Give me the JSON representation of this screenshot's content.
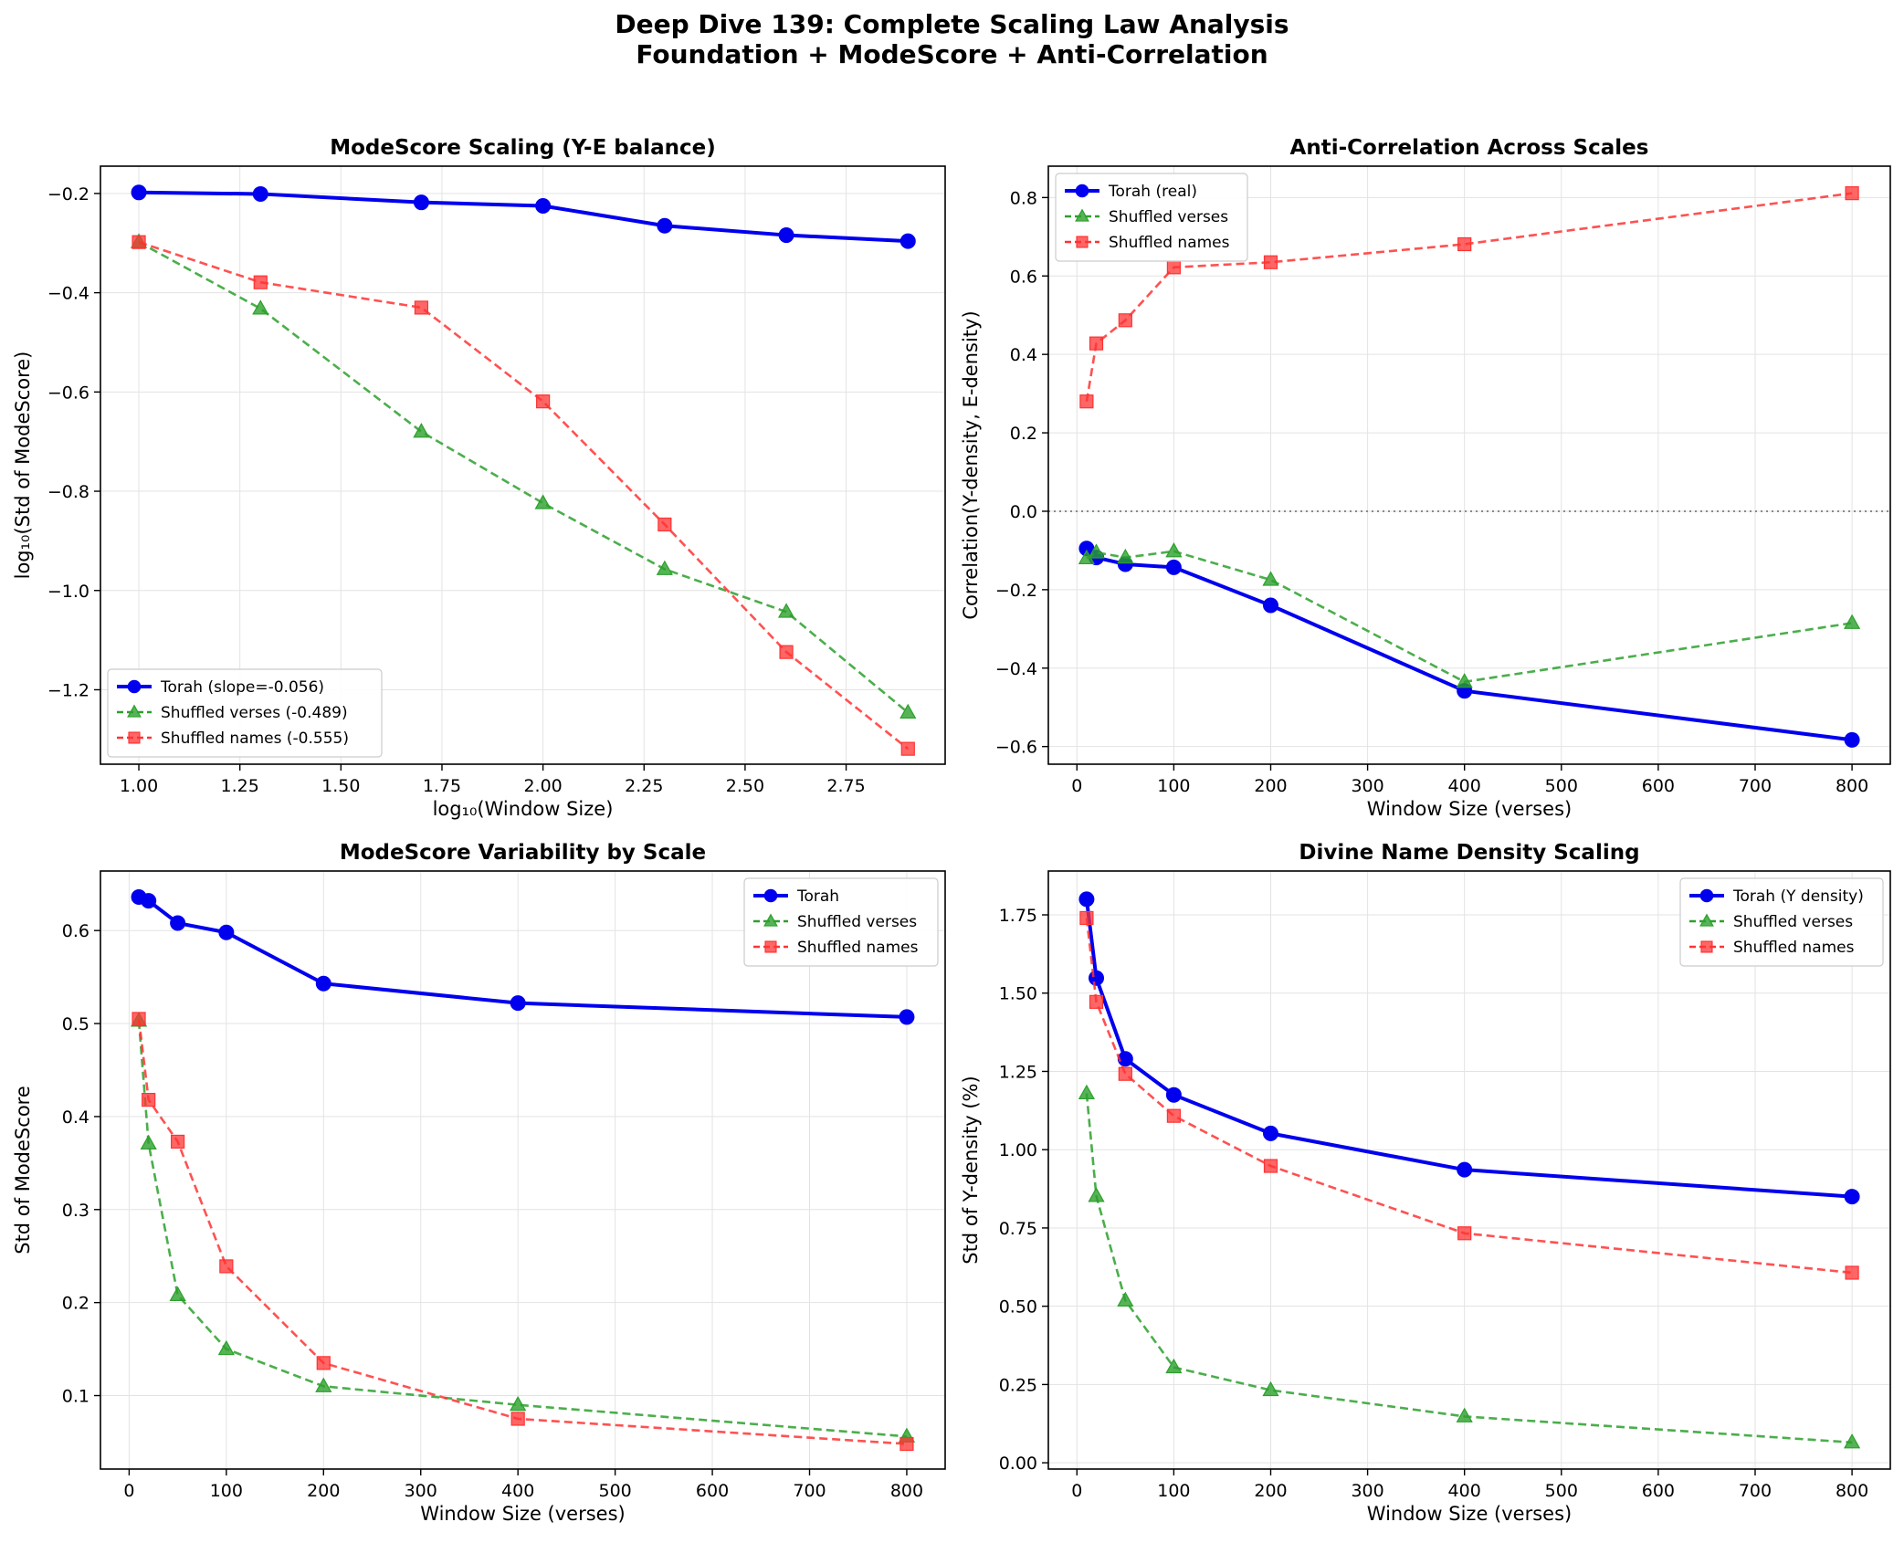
{
  "figure": {
    "title_lines": [
      "Deep Dive 139: Complete Scaling Law Analysis",
      "Foundation + ModeScore + Anti-Correlation"
    ]
  },
  "styles": {
    "Torah": {
      "color": "#0000ee",
      "marker": "circle",
      "dash": "solid"
    },
    "Shuffled verses": {
      "color": "#2ca02c",
      "marker": "triangle",
      "dash": "dashed"
    },
    "Shuffled names": {
      "color": "#ff3333",
      "marker": "square",
      "dash": "dashed"
    }
  },
  "chart_data": [
    {
      "type": "line",
      "title": "ModeScore Scaling (Y-E balance)",
      "xlabel": "log₁₀(Window Size)",
      "ylabel": "log₁₀(Std of ModeScore)",
      "xlim": [
        0.905,
        2.995
      ],
      "ylim": [
        -1.35,
        -0.145
      ],
      "xticks": [
        1.0,
        1.25,
        1.5,
        1.75,
        2.0,
        2.25,
        2.5,
        2.75
      ],
      "xtick_labels": [
        "1.00",
        "1.25",
        "1.50",
        "1.75",
        "2.00",
        "2.25",
        "2.50",
        "2.75"
      ],
      "yticks": [
        -1.2,
        -1.0,
        -0.8,
        -0.6,
        -0.4,
        -0.2
      ],
      "ytick_labels": [
        "−1.2",
        "−1.0",
        "−0.8",
        "−0.6",
        "−0.4",
        "−0.2"
      ],
      "grid": true,
      "legend_position": "lower-left",
      "series": [
        {
          "name": "Torah (slope=-0.056)",
          "style": "Torah",
          "x": [
            1.0,
            1.301,
            1.699,
            2.0,
            2.301,
            2.602,
            2.903
          ],
          "y": [
            -0.198,
            -0.201,
            -0.218,
            -0.225,
            -0.265,
            -0.284,
            -0.296
          ]
        },
        {
          "name": "Shuffled verses (-0.489)",
          "style": "Shuffled verses",
          "x": [
            1.0,
            1.301,
            1.699,
            2.0,
            2.301,
            2.602,
            2.903
          ],
          "y": [
            -0.298,
            -0.432,
            -0.68,
            -0.824,
            -0.957,
            -1.043,
            -1.246
          ]
        },
        {
          "name": "Shuffled names (-0.555)",
          "style": "Shuffled names",
          "x": [
            1.0,
            1.301,
            1.699,
            2.0,
            2.301,
            2.602,
            2.903
          ],
          "y": [
            -0.298,
            -0.379,
            -0.43,
            -0.619,
            -0.867,
            -1.124,
            -1.319
          ]
        }
      ]
    },
    {
      "type": "line",
      "title": "Anti-Correlation Across Scales",
      "xlabel": "Window Size (verses)",
      "ylabel": "Correlation(Y-density, E-density)",
      "xlim": [
        -29.5,
        839.5
      ],
      "ylim": [
        -0.645,
        0.88
      ],
      "xticks": [
        0,
        100,
        200,
        300,
        400,
        500,
        600,
        700,
        800
      ],
      "xtick_labels": [
        "0",
        "100",
        "200",
        "300",
        "400",
        "500",
        "600",
        "700",
        "800"
      ],
      "yticks": [
        -0.6,
        -0.4,
        -0.2,
        0.0,
        0.2,
        0.4,
        0.6,
        0.8
      ],
      "ytick_labels": [
        "−0.6",
        "−0.4",
        "−0.2",
        "0.0",
        "0.2",
        "0.4",
        "0.6",
        "0.8"
      ],
      "grid": true,
      "zero_line": true,
      "legend_position": "upper-left",
      "series": [
        {
          "name": "Torah (real)",
          "style": "Torah",
          "x": [
            10,
            20,
            50,
            100,
            200,
            400,
            800
          ],
          "y": [
            -0.095,
            -0.118,
            -0.135,
            -0.143,
            -0.24,
            -0.458,
            -0.583
          ]
        },
        {
          "name": "Shuffled verses",
          "style": "Shuffled verses",
          "x": [
            10,
            20,
            50,
            100,
            200,
            400,
            800
          ],
          "y": [
            -0.12,
            -0.105,
            -0.118,
            -0.102,
            -0.175,
            -0.435,
            -0.285
          ]
        },
        {
          "name": "Shuffled names",
          "style": "Shuffled names",
          "x": [
            10,
            20,
            50,
            100,
            200,
            400,
            800
          ],
          "y": [
            0.28,
            0.428,
            0.487,
            0.622,
            0.635,
            0.681,
            0.811
          ]
        }
      ]
    },
    {
      "type": "line",
      "title": "ModeScore Variability by Scale",
      "xlabel": "Window Size (verses)",
      "ylabel": "Std of ModeScore",
      "xlim": [
        -29.5,
        839.5
      ],
      "ylim": [
        0.021,
        0.664
      ],
      "xticks": [
        0,
        100,
        200,
        300,
        400,
        500,
        600,
        700,
        800
      ],
      "xtick_labels": [
        "0",
        "100",
        "200",
        "300",
        "400",
        "500",
        "600",
        "700",
        "800"
      ],
      "yticks": [
        0.1,
        0.2,
        0.3,
        0.4,
        0.5,
        0.6
      ],
      "ytick_labels": [
        "0.1",
        "0.2",
        "0.3",
        "0.4",
        "0.5",
        "0.6"
      ],
      "grid": true,
      "legend_position": "upper-right",
      "series": [
        {
          "name": "Torah",
          "style": "Torah",
          "x": [
            10,
            20,
            50,
            100,
            200,
            400,
            800
          ],
          "y": [
            0.636,
            0.632,
            0.608,
            0.598,
            0.543,
            0.522,
            0.507
          ]
        },
        {
          "name": "Shuffled verses",
          "style": "Shuffled verses",
          "x": [
            10,
            20,
            50,
            100,
            200,
            400,
            800
          ],
          "y": [
            0.503,
            0.371,
            0.208,
            0.15,
            0.11,
            0.09,
            0.056
          ]
        },
        {
          "name": "Shuffled names",
          "style": "Shuffled names",
          "x": [
            10,
            20,
            50,
            100,
            200,
            400,
            800
          ],
          "y": [
            0.505,
            0.418,
            0.373,
            0.239,
            0.135,
            0.075,
            0.048
          ]
        }
      ]
    },
    {
      "type": "line",
      "title": "Divine Name Density Scaling",
      "xlabel": "Window Size (verses)",
      "ylabel": "Std of Y-density (%)",
      "xlim": [
        -29.5,
        839.5
      ],
      "ylim": [
        -0.02,
        1.89
      ],
      "xticks": [
        0,
        100,
        200,
        300,
        400,
        500,
        600,
        700,
        800
      ],
      "xtick_labels": [
        "0",
        "100",
        "200",
        "300",
        "400",
        "500",
        "600",
        "700",
        "800"
      ],
      "yticks": [
        0.0,
        0.25,
        0.5,
        0.75,
        1.0,
        1.25,
        1.5,
        1.75
      ],
      "ytick_labels": [
        "0.00",
        "0.25",
        "0.50",
        "0.75",
        "1.00",
        "1.25",
        "1.50",
        "1.75"
      ],
      "grid": true,
      "legend_position": "upper-right",
      "series": [
        {
          "name": "Torah (Y density)",
          "style": "Torah",
          "x": [
            10,
            20,
            50,
            100,
            200,
            400,
            800
          ],
          "y": [
            1.8,
            1.548,
            1.29,
            1.175,
            1.052,
            0.936,
            0.85
          ]
        },
        {
          "name": "Shuffled verses",
          "style": "Shuffled verses",
          "x": [
            10,
            20,
            50,
            100,
            200,
            400,
            800
          ],
          "y": [
            1.18,
            0.852,
            0.518,
            0.305,
            0.232,
            0.148,
            0.065
          ]
        },
        {
          "name": "Shuffled names",
          "style": "Shuffled names",
          "x": [
            10,
            20,
            50,
            100,
            200,
            400,
            800
          ],
          "y": [
            1.74,
            1.472,
            1.242,
            1.108,
            0.948,
            0.733,
            0.607
          ]
        }
      ]
    }
  ]
}
